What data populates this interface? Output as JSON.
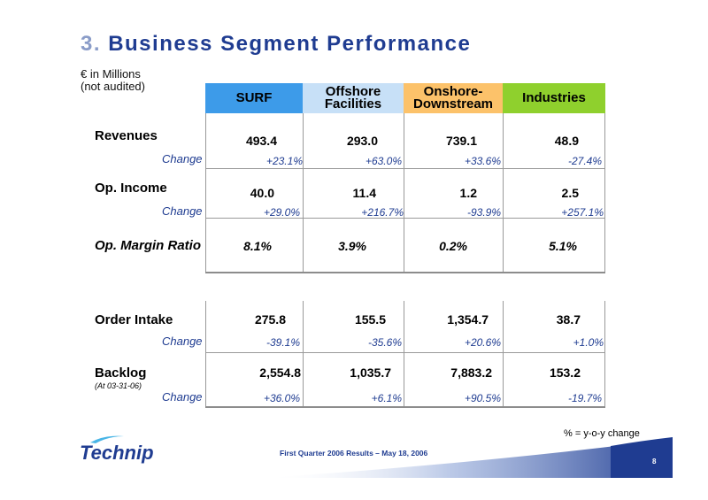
{
  "slide": {
    "title_number": "3.",
    "title_text": "Business Segment Performance",
    "units_line1": "€ in Millions",
    "units_line2": "(not audited)"
  },
  "segments": [
    {
      "line1": "SURF",
      "line2": "",
      "color": "#3d9be9",
      "text_color": "#000000"
    },
    {
      "line1": "Offshore",
      "line2": "Facilities",
      "color": "#c7e0f7",
      "text_color": "#000000"
    },
    {
      "line1": "Onshore-",
      "line2": "Downstream",
      "color": "#fcc26a",
      "text_color": "#000000"
    },
    {
      "line1": "Industries",
      "line2": "",
      "color": "#8fd02d",
      "text_color": "#000000"
    }
  ],
  "table1": {
    "revenues_label": "Revenues",
    "revenues": [
      "493.4",
      "293.0",
      "739.1",
      "48.9"
    ],
    "revenues_change_label": "Change",
    "revenues_change": [
      "+23.1%",
      "+63.0%",
      "+33.6%",
      "-27.4%"
    ],
    "op_income_label": "Op. Income",
    "op_income": [
      "40.0",
      "11.4",
      "1.2",
      "2.5"
    ],
    "op_income_change_label": "Change",
    "op_income_change": [
      "+29.0%",
      "+216.7%",
      "-93.9%",
      "+257.1%"
    ],
    "margin_label": "Op. Margin Ratio",
    "margin": [
      "8.1%",
      "3.9%",
      "0.2%",
      "5.1%"
    ]
  },
  "table2": {
    "order_label": "Order Intake",
    "order": [
      "275.8",
      "155.5",
      "1,354.7",
      "38.7"
    ],
    "order_change_label": "Change",
    "order_change": [
      "-39.1%",
      "-35.6%",
      "+20.6%",
      "+1.0%"
    ],
    "backlog_label": "Backlog",
    "backlog_sublabel": "(At 03-31-06)",
    "backlog": [
      "2,554.8",
      "1,035.7",
      "7,883.2",
      "153.2"
    ],
    "backlog_change_label": "Change",
    "backlog_change": [
      "+36.0%",
      "+6.1%",
      "+90.5%",
      "-19.7%"
    ]
  },
  "footnote": "% = y-o-y change",
  "footer": {
    "logo_text": "Technip",
    "event": "First Quarter 2006 Results – May 18, 2006",
    "page": "8"
  },
  "colors": {
    "title": "#1f3c91",
    "title_number": "#8a9cc8",
    "change_text": "#1f3c91",
    "footer_blue": "#1f3c91"
  }
}
